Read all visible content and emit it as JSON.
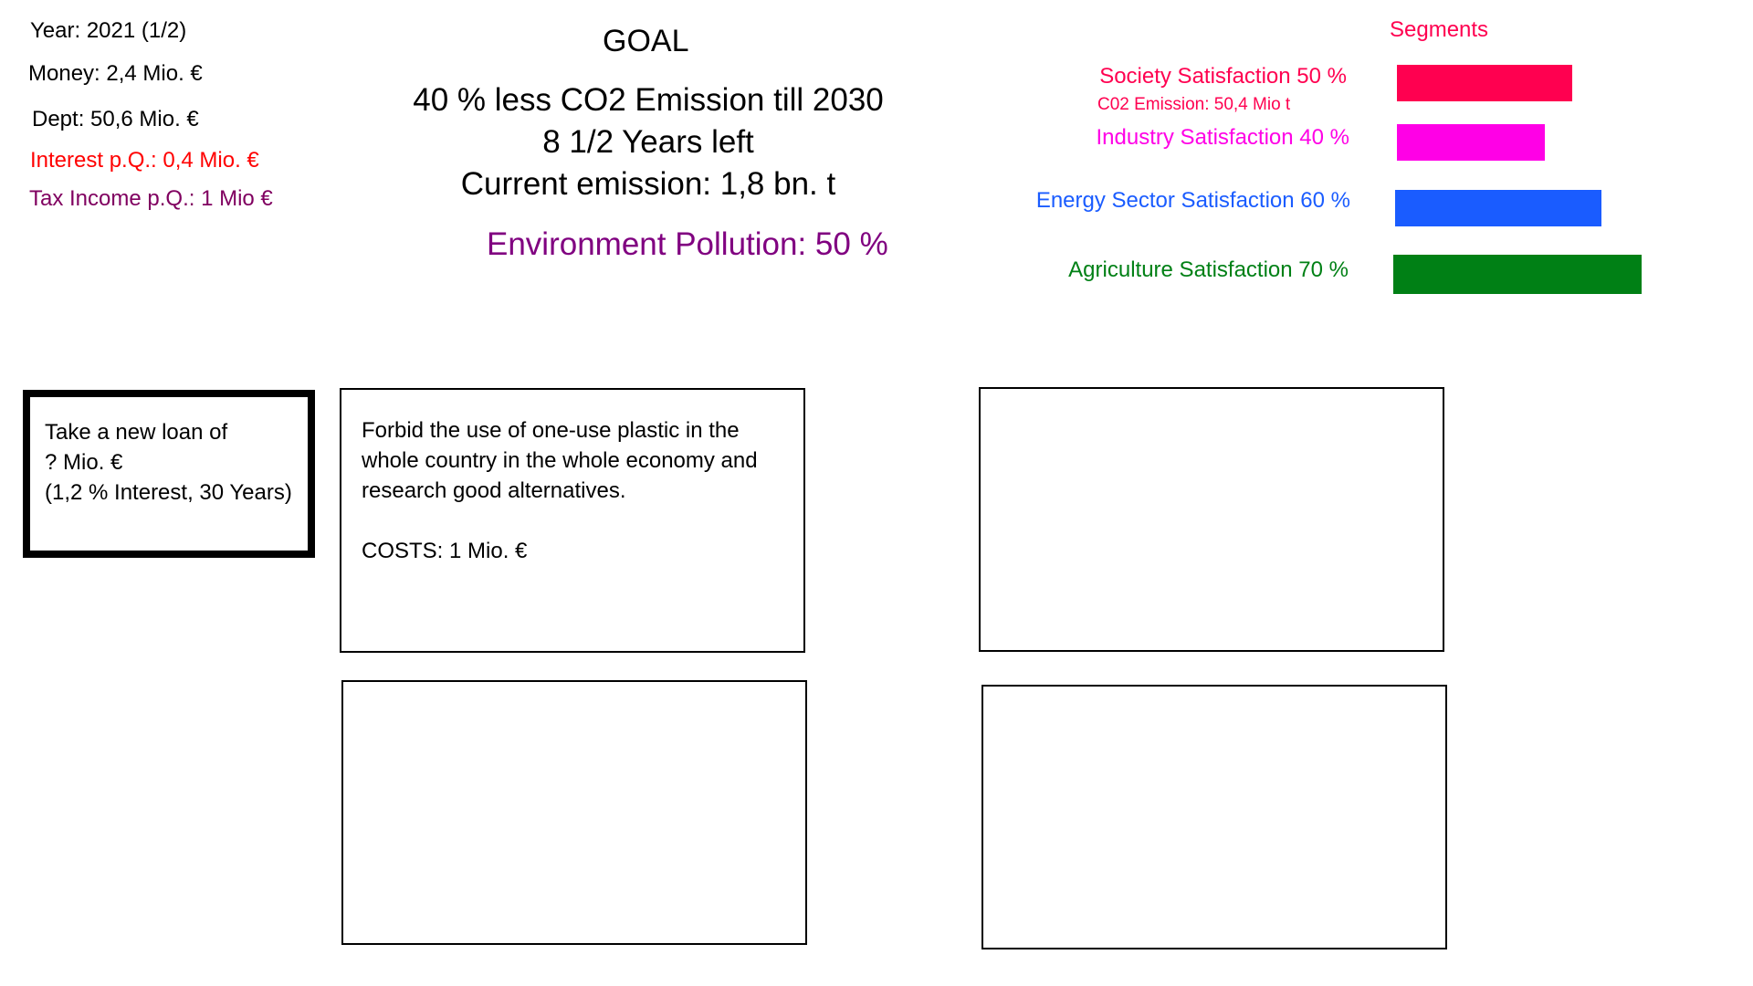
{
  "stats": {
    "year": "Year: 2021 (1/2)",
    "money": "Money: 2,4 Mio. €",
    "debt": "Dept: 50,6 Mio. €",
    "interest": "Interest p.Q.: 0,4 Mio. €",
    "tax_income": "Tax Income p.Q.: 1 Mio €"
  },
  "goal": {
    "title": "GOAL",
    "target": "40 % less CO2 Emission till 2030",
    "years_left": "8 1/2 Years left",
    "current_emission": "Current emission: 1,8 bn. t",
    "pollution": "Environment Pollution: 50 %"
  },
  "segments": {
    "header": "Segments",
    "items": [
      {
        "label": "Society  Satisfaction 50 %",
        "sub": "C02 Emission: 50,4 Mio t",
        "value": 50,
        "color": "#ff0050"
      },
      {
        "label": "Industry Satisfaction 40 %",
        "value": 40,
        "color": "#ff00e6"
      },
      {
        "label": "Energy Sector Satisfaction 60 %",
        "value": 60,
        "color": "#1a5cff"
      },
      {
        "label": "Agriculture Satisfaction 70 %",
        "value": 70,
        "color": "#008015"
      }
    ]
  },
  "colors": {
    "interest": "#ff0000",
    "tax_income": "#800060",
    "pollution": "#800080",
    "segments_header": "#ff0050"
  },
  "cards": {
    "loan": {
      "line1": "Take a new loan of",
      "line2": "? Mio. €",
      "line3": "(1,2 % Interest, 30 Years)"
    },
    "plastic": {
      "text": "Forbid the use of one-use plastic in the whole country in the whole economy and research good alternatives.",
      "cost": "COSTS: 1 Mio. €"
    }
  }
}
